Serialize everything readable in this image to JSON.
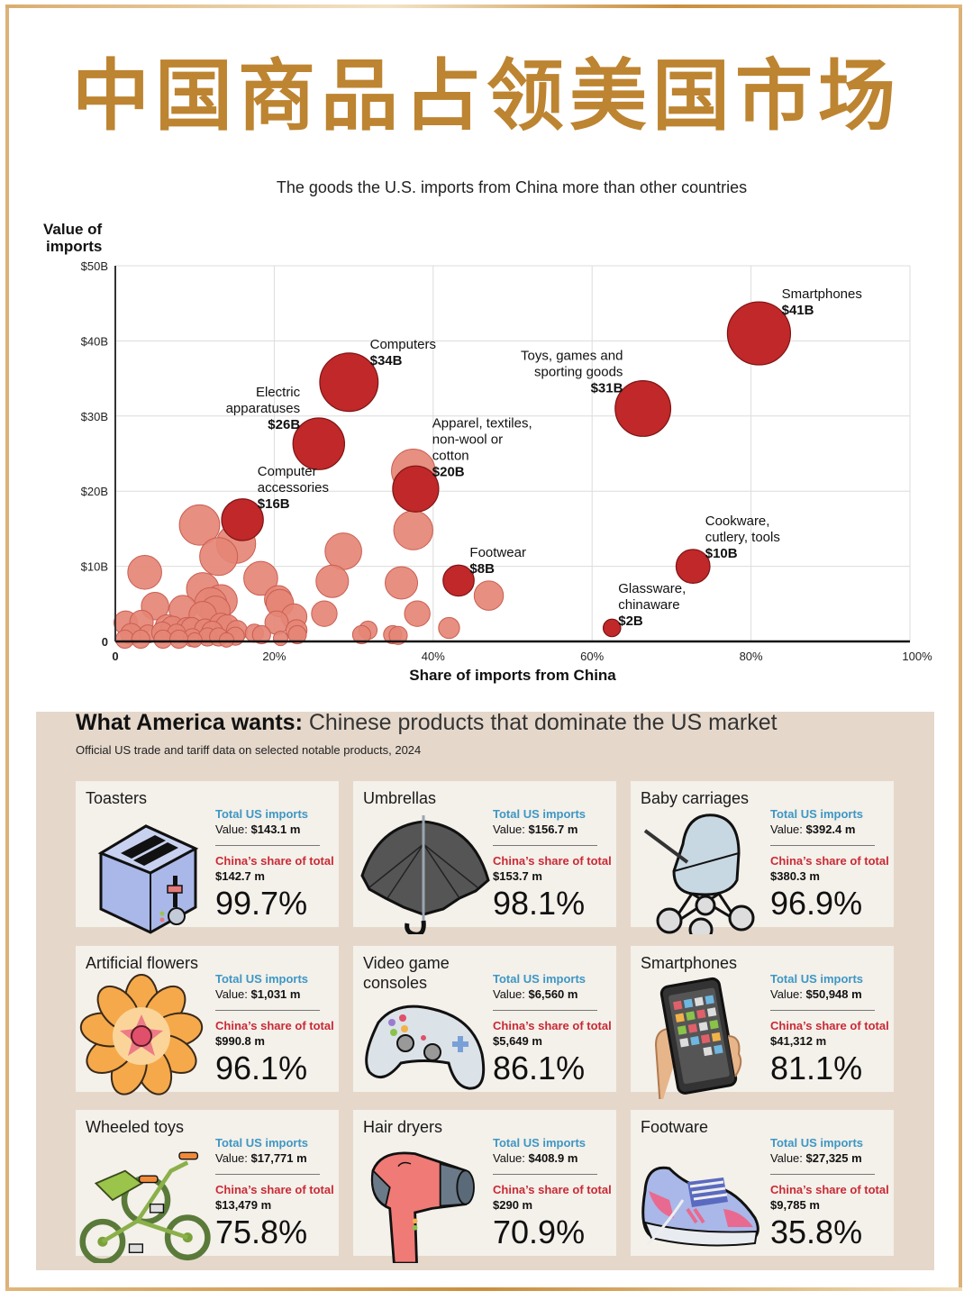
{
  "page": {
    "title": "中国商品占领美国市场",
    "chart_subtitle": "The goods the U.S. imports from China more than other countries"
  },
  "chart_data": {
    "type": "scatter",
    "subtitle": "The goods the U.S. imports from China more than other countries",
    "xlabel": "Share of imports from China",
    "ylabel": "Value of imports",
    "ylabel_lines": [
      "Value of",
      "imports"
    ],
    "xlim": [
      0,
      100
    ],
    "ylim": [
      0,
      50
    ],
    "x_ticks": [
      0,
      20,
      40,
      60,
      80,
      100
    ],
    "x_tick_labels": [
      "0",
      "20%",
      "40%",
      "60%",
      "80%",
      "100%"
    ],
    "y_ticks": [
      0,
      10,
      20,
      30,
      40,
      50
    ],
    "y_tick_labels": [
      "0",
      "$10B",
      "$20B",
      "$30B",
      "$40B",
      "$50B"
    ],
    "grid": true,
    "highlight_color": "#c0282a",
    "other_color": "#e58576",
    "highlighted": [
      {
        "name": "Smartphones",
        "label_lines": [
          "Smartphones"
        ],
        "value_label": "$41B",
        "x": 81,
        "y": 41,
        "label_pos": "top-right"
      },
      {
        "name": "Computers",
        "label_lines": [
          "Computers"
        ],
        "value_label": "$34B",
        "x": 29.4,
        "y": 34.5,
        "label_pos": "top-right"
      },
      {
        "name": "Electric apparatuses",
        "label_lines": [
          "Electric",
          "apparatuses"
        ],
        "value_label": "$26B",
        "x": 25.6,
        "y": 26.3,
        "label_pos": "top-left"
      },
      {
        "name": "Toys, games and sporting goods",
        "label_lines": [
          "Toys, games and",
          "sporting goods"
        ],
        "value_label": "$31B",
        "x": 66.4,
        "y": 31,
        "label_pos": "top-left"
      },
      {
        "name": "Apparel, textiles, non-wool or cotton",
        "label_lines": [
          "Apparel, textiles,",
          "non-wool or",
          "cotton"
        ],
        "value_label": "$20B",
        "x": 37.8,
        "y": 20.3,
        "label_pos": "top-right"
      },
      {
        "name": "Computer accessories",
        "label_lines": [
          "Computer",
          "accessories"
        ],
        "value_label": "$16B",
        "x": 16,
        "y": 16.2,
        "label_pos": "top-right"
      },
      {
        "name": "Footwear",
        "label_lines": [
          "Footwear"
        ],
        "value_label": "$8B",
        "x": 43.2,
        "y": 8.1,
        "label_pos": "top-right"
      },
      {
        "name": "Cookware, cutlery, tools",
        "label_lines": [
          "Cookware,",
          "cutlery, tools"
        ],
        "value_label": "$10B",
        "x": 72.7,
        "y": 10,
        "label_pos": "top-right"
      },
      {
        "name": "Glassware, chinaware",
        "label_lines": [
          "Glassware,",
          "chinaware"
        ],
        "value_label": "$2B",
        "x": 62.5,
        "y": 1.8,
        "label_pos": "top-right"
      }
    ],
    "others": [
      {
        "x": 37.5,
        "y": 22.7,
        "v": 18
      },
      {
        "x": 10.6,
        "y": 15.5,
        "v": 15
      },
      {
        "x": 15.2,
        "y": 13,
        "v": 14
      },
      {
        "x": 13,
        "y": 11.3,
        "v": 13
      },
      {
        "x": 37.5,
        "y": 14.8,
        "v": 14
      },
      {
        "x": 28.7,
        "y": 12,
        "v": 12
      },
      {
        "x": 3.7,
        "y": 9.2,
        "v": 10
      },
      {
        "x": 18.3,
        "y": 8.4,
        "v": 10
      },
      {
        "x": 27.3,
        "y": 8,
        "v": 9
      },
      {
        "x": 36,
        "y": 7.8,
        "v": 9
      },
      {
        "x": 47,
        "y": 6.1,
        "v": 7
      },
      {
        "x": 11,
        "y": 7,
        "v": 9
      },
      {
        "x": 13.3,
        "y": 5.4,
        "v": 9
      },
      {
        "x": 12,
        "y": 5,
        "v": 9
      },
      {
        "x": 5,
        "y": 4.7,
        "v": 6
      },
      {
        "x": 8.5,
        "y": 4.3,
        "v": 6
      },
      {
        "x": 12.6,
        "y": 4.1,
        "v": 7
      },
      {
        "x": 11,
        "y": 3.5,
        "v": 6
      },
      {
        "x": 20.5,
        "y": 5.6,
        "v": 6
      },
      {
        "x": 20.7,
        "y": 5.1,
        "v": 6
      },
      {
        "x": 22.5,
        "y": 3.3,
        "v": 5
      },
      {
        "x": 26.3,
        "y": 3.7,
        "v": 5
      },
      {
        "x": 38,
        "y": 3.7,
        "v": 5
      },
      {
        "x": 1.3,
        "y": 2.5,
        "v": 4
      },
      {
        "x": 3.3,
        "y": 2.6,
        "v": 4
      },
      {
        "x": 20.3,
        "y": 2.5,
        "v": 4
      },
      {
        "x": 42,
        "y": 1.8,
        "v": 3
      },
      {
        "x": 6.5,
        "y": 2,
        "v": 4
      },
      {
        "x": 7.2,
        "y": 1.8,
        "v": 4
      },
      {
        "x": 9,
        "y": 1.8,
        "v": 3
      },
      {
        "x": 9.6,
        "y": 1.8,
        "v": 3
      },
      {
        "x": 11.3,
        "y": 1.6,
        "v": 3
      },
      {
        "x": 13.3,
        "y": 2.2,
        "v": 4
      },
      {
        "x": 14.1,
        "y": 2,
        "v": 4
      },
      {
        "x": 12.2,
        "y": 1.3,
        "v": 3
      },
      {
        "x": 15.3,
        "y": 1.4,
        "v": 3
      },
      {
        "x": 22.8,
        "y": 1.5,
        "v": 3
      },
      {
        "x": 22.9,
        "y": 0.9,
        "v": 2
      },
      {
        "x": 17.5,
        "y": 1.1,
        "v": 2
      },
      {
        "x": 18.4,
        "y": 0.9,
        "v": 2
      },
      {
        "x": 31.8,
        "y": 1.5,
        "v": 2
      },
      {
        "x": 31,
        "y": 0.9,
        "v": 2
      },
      {
        "x": 34.9,
        "y": 0.9,
        "v": 2
      },
      {
        "x": 35.6,
        "y": 0.8,
        "v": 2
      },
      {
        "x": 2,
        "y": 1,
        "v": 3
      },
      {
        "x": 4.1,
        "y": 1,
        "v": 2
      },
      {
        "x": 5.9,
        "y": 1.2,
        "v": 3
      },
      {
        "x": 7.7,
        "y": 1.1,
        "v": 2
      },
      {
        "x": 9.7,
        "y": 0.5,
        "v": 2
      },
      {
        "x": 11.6,
        "y": 0.6,
        "v": 2
      },
      {
        "x": 13,
        "y": 0.6,
        "v": 2
      },
      {
        "x": 15.1,
        "y": 0.7,
        "v": 2
      },
      {
        "x": 1.2,
        "y": 0.3,
        "v": 2
      },
      {
        "x": 3.2,
        "y": 0.3,
        "v": 2
      },
      {
        "x": 6,
        "y": 0.3,
        "v": 2
      },
      {
        "x": 8,
        "y": 0.3,
        "v": 2
      },
      {
        "x": 10,
        "y": 0.2,
        "v": 1
      },
      {
        "x": 14,
        "y": 0.2,
        "v": 1
      },
      {
        "x": 20.8,
        "y": 0.4,
        "v": 1
      }
    ]
  },
  "panel": {
    "title_bold": "What America wants:",
    "title_light": " Chinese products that dominate the US market",
    "subtitle": "Official US trade and tariff data on selected notable products, 2024",
    "total_label": "Total US imports",
    "value_prefix": "Value: ",
    "china_label": "China’s share of total",
    "colors": {
      "total_label": "#3d97c4",
      "china_label": "#c92a35",
      "panel_bg": "#e5d8cb",
      "card_bg": "#f4f0ea"
    },
    "cards": [
      {
        "name": "Toasters",
        "illustration": "toaster-icon",
        "total_value": "$143.1 m",
        "china_value": "$142.7 m",
        "china_share": "99.7%"
      },
      {
        "name": "Umbrellas",
        "illustration": "umbrella-icon",
        "total_value": "$156.7 m",
        "china_value": "$153.7 m",
        "china_share": "98.1%"
      },
      {
        "name": "Baby carriages",
        "illustration": "baby-carriage-icon",
        "total_value": "$392.4 m",
        "china_value": "$380.3 m",
        "china_share": "96.9%"
      },
      {
        "name": "Artificial flowers",
        "illustration": "flower-icon",
        "total_value": "$1,031 m",
        "china_value": "$990.8 m",
        "china_share": "96.1%"
      },
      {
        "name": "Video game consoles",
        "illustration": "game-controller-icon",
        "total_value": "$6,560 m",
        "china_value": "$5,649 m",
        "china_share": "86.1%"
      },
      {
        "name": "Smartphones",
        "illustration": "smartphone-icon",
        "total_value": "$50,948 m",
        "china_value": "$41,312 m",
        "china_share": "81.1%"
      },
      {
        "name": "Wheeled toys",
        "illustration": "tricycle-icon",
        "total_value": "$17,771 m",
        "china_value": "$13,479 m",
        "china_share": "75.8%"
      },
      {
        "name": "Hair dryers",
        "illustration": "hair-dryer-icon",
        "total_value": "$408.9 m",
        "china_value": "$290 m",
        "china_share": "70.9%"
      },
      {
        "name": "Footware",
        "illustration": "sneaker-icon",
        "total_value": "$27,325 m",
        "china_value": "$9,785 m",
        "china_share": "35.8%"
      }
    ]
  }
}
